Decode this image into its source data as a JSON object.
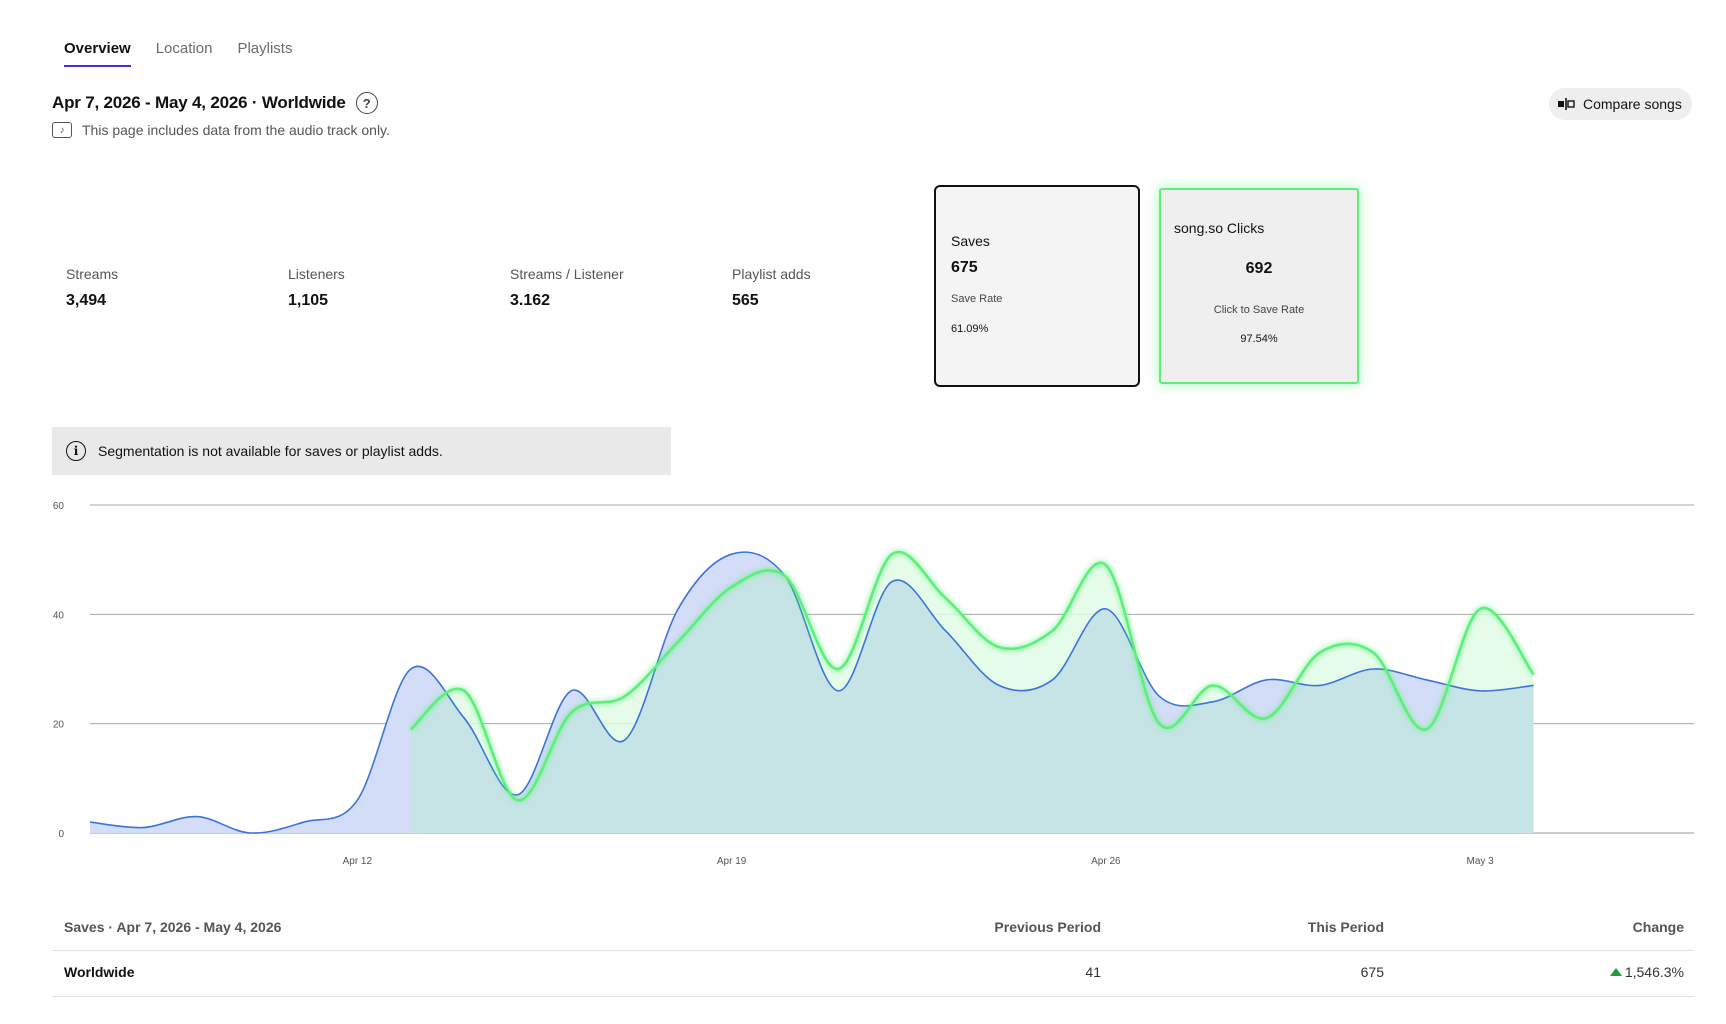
{
  "tabs": [
    {
      "label": "Overview",
      "active": true
    },
    {
      "label": "Location",
      "active": false
    },
    {
      "label": "Playlists",
      "active": false
    }
  ],
  "header": {
    "range": "Apr 7, 2026 - May 4, 2026 · Worldwide",
    "help_icon": "question-circle-icon",
    "note": "This page includes data from the audio track only.",
    "note_icon": "audio-track-icon",
    "compare_label": "Compare songs",
    "compare_icon": "compare-icon"
  },
  "stats": [
    {
      "label": "Streams",
      "value": "3,494"
    },
    {
      "label": "Listeners",
      "value": "1,105"
    },
    {
      "label": "Streams / Listener",
      "value": "3.162"
    },
    {
      "label": "Playlist adds",
      "value": "565"
    }
  ],
  "saves_card": {
    "label": "Saves",
    "value": "675",
    "sub_label": "Save Rate",
    "sub_value": "61.09%"
  },
  "clicks_card": {
    "label": "song.so Clicks",
    "value": "692",
    "sub_label": "Click to Save Rate",
    "sub_value": "97.54%",
    "accent": "#5cf07a"
  },
  "banner": {
    "text": "Segmentation is not available for saves or playlist adds.",
    "icon": "info-icon"
  },
  "chart_data": {
    "type": "area",
    "ylim": [
      0,
      60
    ],
    "yticks": [
      0,
      20,
      40,
      60
    ],
    "xticks": [
      {
        "label": "Apr 12",
        "day": 5
      },
      {
        "label": "Apr 19",
        "day": 12
      },
      {
        "label": "Apr 26",
        "day": 19
      },
      {
        "label": "May 3",
        "day": 26
      }
    ],
    "x_days": [
      0,
      1,
      2,
      3,
      4,
      5,
      6,
      7,
      8,
      9,
      10,
      11,
      12,
      13,
      14,
      15,
      16,
      17,
      18,
      19,
      20,
      21,
      22,
      23,
      24,
      25,
      26,
      27
    ],
    "grid": true,
    "series": [
      {
        "color": "#3b74d9",
        "fill": "#d3ddf7",
        "values": [
          2,
          1,
          3,
          0,
          2,
          6,
          30,
          21,
          7,
          26,
          17,
          41,
          51,
          47,
          26,
          46,
          37,
          27,
          28,
          41,
          25,
          24,
          28,
          27,
          30,
          28,
          26,
          27
        ]
      },
      {
        "color": "#5cf07a",
        "fill": "#e2fbe6",
        "start_day": 6,
        "values": [
          null,
          null,
          null,
          null,
          null,
          null,
          19,
          26,
          6,
          22,
          25,
          35,
          45,
          47,
          30,
          51,
          43,
          34,
          37,
          49,
          20,
          27,
          21,
          33,
          33,
          19,
          41,
          29
        ]
      }
    ]
  },
  "table": {
    "title": "Saves · Apr 7, 2026 - May 4, 2026",
    "col_prev": "Previous Period",
    "col_this": "This Period",
    "col_change": "Change",
    "rows": [
      {
        "name": "Worldwide",
        "prev": "41",
        "this": "675",
        "change": "1,546.3%",
        "direction": "up"
      }
    ]
  }
}
